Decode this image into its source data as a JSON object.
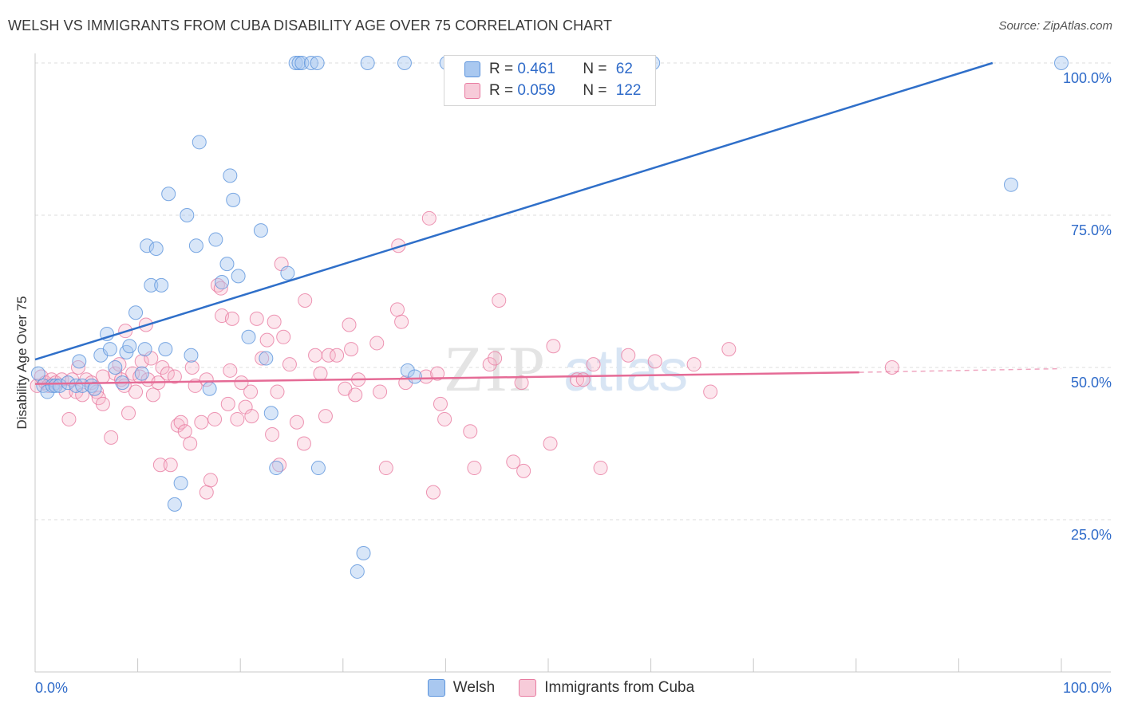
{
  "header": {
    "title": "WELSH VS IMMIGRANTS FROM CUBA DISABILITY AGE OVER 75 CORRELATION CHART",
    "source": "Source: ZipAtlas.com"
  },
  "watermark": {
    "zip": "ZIP",
    "atlas": "atlas"
  },
  "legend": {
    "rows": [
      {
        "r_label": "R = ",
        "r_value": "0.461",
        "n_label": "N = ",
        "n_value": "62",
        "color": "#a9c8f0"
      },
      {
        "r_label": "R = ",
        "r_value": "0.059",
        "n_label": "N = ",
        "n_value": "122",
        "color": "#f7b6cb"
      }
    ]
  },
  "bottom_legend": [
    {
      "label": "Welsh",
      "color": "#a9c8f0"
    },
    {
      "label": "Immigrants from Cuba",
      "color": "#f7b6cb"
    }
  ],
  "chart_data": {
    "type": "scatter",
    "title": "WELSH VS IMMIGRANTS FROM CUBA DISABILITY AGE OVER 75 CORRELATION CHART",
    "xlabel": "",
    "ylabel": "Disability Age Over 75",
    "xlim": [
      0,
      100
    ],
    "ylim": [
      0,
      100
    ],
    "x_tick_labels": [
      "0.0%",
      "100.0%"
    ],
    "y_ticks": [
      {
        "value": 25,
        "label": "25.0%"
      },
      {
        "value": 50,
        "label": "50.0%"
      },
      {
        "value": 75,
        "label": "75.0%"
      },
      {
        "value": 100,
        "label": "100.0%"
      }
    ],
    "grid": "horizontal dashed",
    "legend_position": "top-center",
    "colors": {
      "welsh": "#5b93dc",
      "welsh_fill": "#a9c8f0",
      "cuba": "#e87aa0",
      "cuba_fill": "#f7b6cb",
      "welsh_line": "#2f6fc9",
      "cuba_line": "#e56b96",
      "axis_text": "#2f6bc9"
    },
    "series": [
      {
        "name": "Welsh",
        "trend": {
          "x": [
            0,
            93.3
          ],
          "y": [
            51.3,
            100
          ]
        },
        "points": [
          [
            0.3,
            49
          ],
          [
            0.8,
            47
          ],
          [
            1.2,
            46
          ],
          [
            1.7,
            47
          ],
          [
            2,
            47
          ],
          [
            2.4,
            47
          ],
          [
            3.2,
            47.5
          ],
          [
            4,
            47
          ],
          [
            4.3,
            51
          ],
          [
            4.6,
            47
          ],
          [
            5.5,
            47
          ],
          [
            5.8,
            46.5
          ],
          [
            6.4,
            52
          ],
          [
            7,
            55.5
          ],
          [
            7.3,
            53
          ],
          [
            7.8,
            50
          ],
          [
            8.5,
            47.5
          ],
          [
            8.9,
            52.5
          ],
          [
            9.2,
            53.5
          ],
          [
            9.8,
            59
          ],
          [
            10.4,
            49
          ],
          [
            10.7,
            53
          ],
          [
            10.9,
            70
          ],
          [
            11.3,
            63.5
          ],
          [
            11.8,
            69.5
          ],
          [
            12.3,
            63.5
          ],
          [
            12.7,
            53
          ],
          [
            13,
            78.5
          ],
          [
            14.2,
            31
          ],
          [
            13.6,
            27.5
          ],
          [
            14.8,
            75
          ],
          [
            15.2,
            52
          ],
          [
            15.7,
            70
          ],
          [
            16,
            87
          ],
          [
            17,
            46.5
          ],
          [
            17.6,
            71
          ],
          [
            18.2,
            64
          ],
          [
            18.7,
            67
          ],
          [
            19,
            81.5
          ],
          [
            19.3,
            77.5
          ],
          [
            19.8,
            65
          ],
          [
            20.8,
            55
          ],
          [
            22,
            72.5
          ],
          [
            22.5,
            51.5
          ],
          [
            23,
            42.5
          ],
          [
            23.5,
            33.5
          ],
          [
            24.6,
            65.5
          ],
          [
            25.4,
            100
          ],
          [
            25.7,
            100
          ],
          [
            26,
            100
          ],
          [
            26.9,
            100
          ],
          [
            27.5,
            100
          ],
          [
            27.6,
            33.5
          ],
          [
            31.4,
            16.5
          ],
          [
            32,
            19.5
          ],
          [
            32.4,
            100
          ],
          [
            36,
            100
          ],
          [
            36.3,
            49.5
          ],
          [
            37,
            48.5
          ],
          [
            40.1,
            100
          ],
          [
            60.2,
            100
          ],
          [
            95.1,
            80
          ],
          [
            100,
            100
          ]
        ]
      },
      {
        "name": "Immigrants from Cuba",
        "trend": {
          "x": [
            0,
            80.3,
            100
          ],
          "y": [
            47.3,
            49.2,
            49.8
          ],
          "solid_until": 80.3
        },
        "points": [
          [
            0.2,
            47
          ],
          [
            0.6,
            48.5
          ],
          [
            1,
            47.5
          ],
          [
            1.3,
            47
          ],
          [
            1.6,
            48
          ],
          [
            2,
            47.5
          ],
          [
            2.6,
            48
          ],
          [
            3,
            46
          ],
          [
            3.3,
            41.5
          ],
          [
            3.6,
            48
          ],
          [
            4,
            46
          ],
          [
            4.2,
            50
          ],
          [
            4.6,
            45.5
          ],
          [
            5,
            48
          ],
          [
            5.5,
            47.5
          ],
          [
            6,
            46
          ],
          [
            6.2,
            45
          ],
          [
            6.6,
            48.5
          ],
          [
            6.6,
            44
          ],
          [
            7.4,
            38.5
          ],
          [
            7.8,
            49
          ],
          [
            8.2,
            50.5
          ],
          [
            8.4,
            48
          ],
          [
            8.7,
            47
          ],
          [
            8.8,
            56
          ],
          [
            9.1,
            42.5
          ],
          [
            9.5,
            49
          ],
          [
            9.8,
            46
          ],
          [
            10.2,
            48.5
          ],
          [
            10.4,
            51
          ],
          [
            10.8,
            57
          ],
          [
            11,
            48
          ],
          [
            11.3,
            51.5
          ],
          [
            11.5,
            45.5
          ],
          [
            12,
            47.5
          ],
          [
            12.4,
            50
          ],
          [
            12.2,
            34
          ],
          [
            12.9,
            49
          ],
          [
            13.2,
            34
          ],
          [
            13.6,
            48.5
          ],
          [
            13.9,
            40.5
          ],
          [
            14.2,
            41
          ],
          [
            14.6,
            39.5
          ],
          [
            15.1,
            37.5
          ],
          [
            15.3,
            50
          ],
          [
            15.6,
            47
          ],
          [
            16.2,
            41
          ],
          [
            16.7,
            48
          ],
          [
            16.7,
            29.5
          ],
          [
            17.1,
            31.5
          ],
          [
            17.5,
            41.5
          ],
          [
            17.8,
            63.5
          ],
          [
            18.1,
            63
          ],
          [
            18.2,
            58.5
          ],
          [
            18.8,
            44
          ],
          [
            19,
            49.5
          ],
          [
            19.2,
            58
          ],
          [
            19.7,
            41.5
          ],
          [
            20.1,
            47.5
          ],
          [
            20.5,
            43.5
          ],
          [
            21,
            46
          ],
          [
            21.1,
            42
          ],
          [
            21.6,
            58
          ],
          [
            22.1,
            51.5
          ],
          [
            22.6,
            54.5
          ],
          [
            23.1,
            39
          ],
          [
            23.3,
            57.5
          ],
          [
            23.6,
            46
          ],
          [
            23.8,
            34
          ],
          [
            24,
            67
          ],
          [
            24.2,
            55
          ],
          [
            24.8,
            50.5
          ],
          [
            25.5,
            41
          ],
          [
            26.2,
            37.5
          ],
          [
            26.3,
            61
          ],
          [
            27.3,
            52
          ],
          [
            27.8,
            49
          ],
          [
            28.3,
            42
          ],
          [
            28.6,
            52
          ],
          [
            29.4,
            52
          ],
          [
            30.2,
            46.5
          ],
          [
            30.6,
            57
          ],
          [
            30.8,
            53
          ],
          [
            31.2,
            45.5
          ],
          [
            31.5,
            48
          ],
          [
            33.3,
            54
          ],
          [
            33.6,
            46
          ],
          [
            34.2,
            33.5
          ],
          [
            35.3,
            59.5
          ],
          [
            35.4,
            70
          ],
          [
            35.7,
            57.5
          ],
          [
            36.1,
            47.5
          ],
          [
            38.1,
            48.5
          ],
          [
            38.4,
            74.5
          ],
          [
            38.8,
            29.5
          ],
          [
            39.2,
            49
          ],
          [
            39.5,
            44
          ],
          [
            39.9,
            41.5
          ],
          [
            42.4,
            39.5
          ],
          [
            42.8,
            33.5
          ],
          [
            44.3,
            50.5
          ],
          [
            44.8,
            51.5
          ],
          [
            45.2,
            61
          ],
          [
            46.6,
            34.5
          ],
          [
            47.4,
            47.5
          ],
          [
            47.6,
            33
          ],
          [
            50.2,
            37.5
          ],
          [
            50.5,
            53.5
          ],
          [
            52.8,
            48
          ],
          [
            53.4,
            48
          ],
          [
            54.4,
            50.5
          ],
          [
            55.1,
            33.5
          ],
          [
            57.8,
            52
          ],
          [
            60.4,
            51
          ],
          [
            64.2,
            50.5
          ],
          [
            65.8,
            46
          ],
          [
            67.6,
            53
          ],
          [
            83.5,
            50
          ]
        ]
      }
    ]
  }
}
